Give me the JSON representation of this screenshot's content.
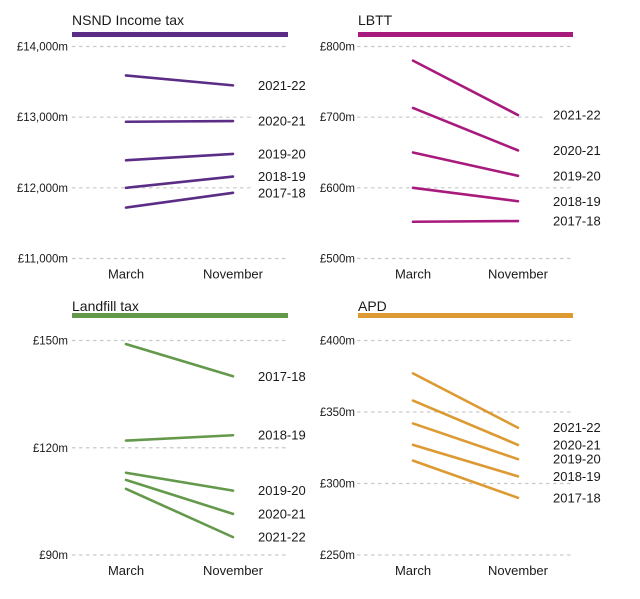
{
  "page": {
    "background": "#ffffff",
    "text_color": "#1a1a1a",
    "gridline_color": "#c9c9c9"
  },
  "chart_data": [
    {
      "type": "line",
      "title": "NSND Income tax",
      "color": "#5b2d86",
      "grid": true,
      "legend_position": "right",
      "x_labels": [
        "March",
        "November"
      ],
      "ylim": [
        11000,
        14000
      ],
      "y_ticks": [
        {
          "label": "£14,000m",
          "value": 14000
        },
        {
          "label": "£13,000m",
          "value": 13000
        },
        {
          "label": "£12,000m",
          "value": 12000
        },
        {
          "label": "£11,000m",
          "value": 11000
        }
      ],
      "series": [
        {
          "name": "2021-22",
          "values": [
            13590,
            13450
          ]
        },
        {
          "name": "2020-21",
          "values": [
            12935,
            12945
          ]
        },
        {
          "name": "2019-20",
          "values": [
            12390,
            12480
          ]
        },
        {
          "name": "2018-19",
          "values": [
            12000,
            12160
          ]
        },
        {
          "name": "2017-18",
          "values": [
            11720,
            11930
          ]
        }
      ]
    },
    {
      "type": "line",
      "title": "LBTT",
      "color": "#a81b7d",
      "grid": true,
      "legend_position": "right",
      "x_labels": [
        "March",
        "November"
      ],
      "ylim": [
        500,
        800
      ],
      "y_ticks": [
        {
          "label": "£800m",
          "value": 800
        },
        {
          "label": "£700m",
          "value": 700
        },
        {
          "label": "£600m",
          "value": 600
        },
        {
          "label": "£500m",
          "value": 500
        }
      ],
      "series": [
        {
          "name": "2021-22",
          "values": [
            780,
            703
          ]
        },
        {
          "name": "2020-21",
          "values": [
            713,
            653
          ]
        },
        {
          "name": "2019-20",
          "values": [
            650,
            617
          ]
        },
        {
          "name": "2018-19",
          "values": [
            600,
            581
          ]
        },
        {
          "name": "2017-18",
          "values": [
            552,
            553
          ]
        }
      ]
    },
    {
      "type": "line",
      "title": "Landfill tax",
      "color": "#64994b",
      "grid": true,
      "legend_position": "right",
      "x_labels": [
        "March",
        "November"
      ],
      "ylim": [
        90,
        150
      ],
      "y_ticks": [
        {
          "label": "£150m",
          "value": 150
        },
        {
          "label": "£120m",
          "value": 120
        },
        {
          "label": "£90m",
          "value": 90
        }
      ],
      "series": [
        {
          "name": "2017-18",
          "values": [
            149,
            140
          ]
        },
        {
          "name": "2018-19",
          "values": [
            122,
            123.5
          ]
        },
        {
          "name": "2019-20",
          "values": [
            113,
            108
          ]
        },
        {
          "name": "2020-21",
          "values": [
            111,
            101.5
          ]
        },
        {
          "name": "2021-22",
          "values": [
            108.5,
            95
          ]
        }
      ]
    },
    {
      "type": "line",
      "title": "APD",
      "color": "#dd9a33",
      "grid": true,
      "legend_position": "right",
      "x_labels": [
        "March",
        "November"
      ],
      "ylim": [
        250,
        400
      ],
      "y_ticks": [
        {
          "label": "£400m",
          "value": 400
        },
        {
          "label": "£350m",
          "value": 350
        },
        {
          "label": "£300m",
          "value": 300
        },
        {
          "label": "£250m",
          "value": 250
        }
      ],
      "series": [
        {
          "name": "2021-22",
          "values": [
            377,
            339
          ]
        },
        {
          "name": "2020-21",
          "values": [
            358,
            327
          ]
        },
        {
          "name": "2019-20",
          "values": [
            342,
            317
          ]
        },
        {
          "name": "2018-19",
          "values": [
            327,
            305
          ]
        },
        {
          "name": "2017-18",
          "values": [
            316,
            290
          ]
        }
      ]
    }
  ]
}
